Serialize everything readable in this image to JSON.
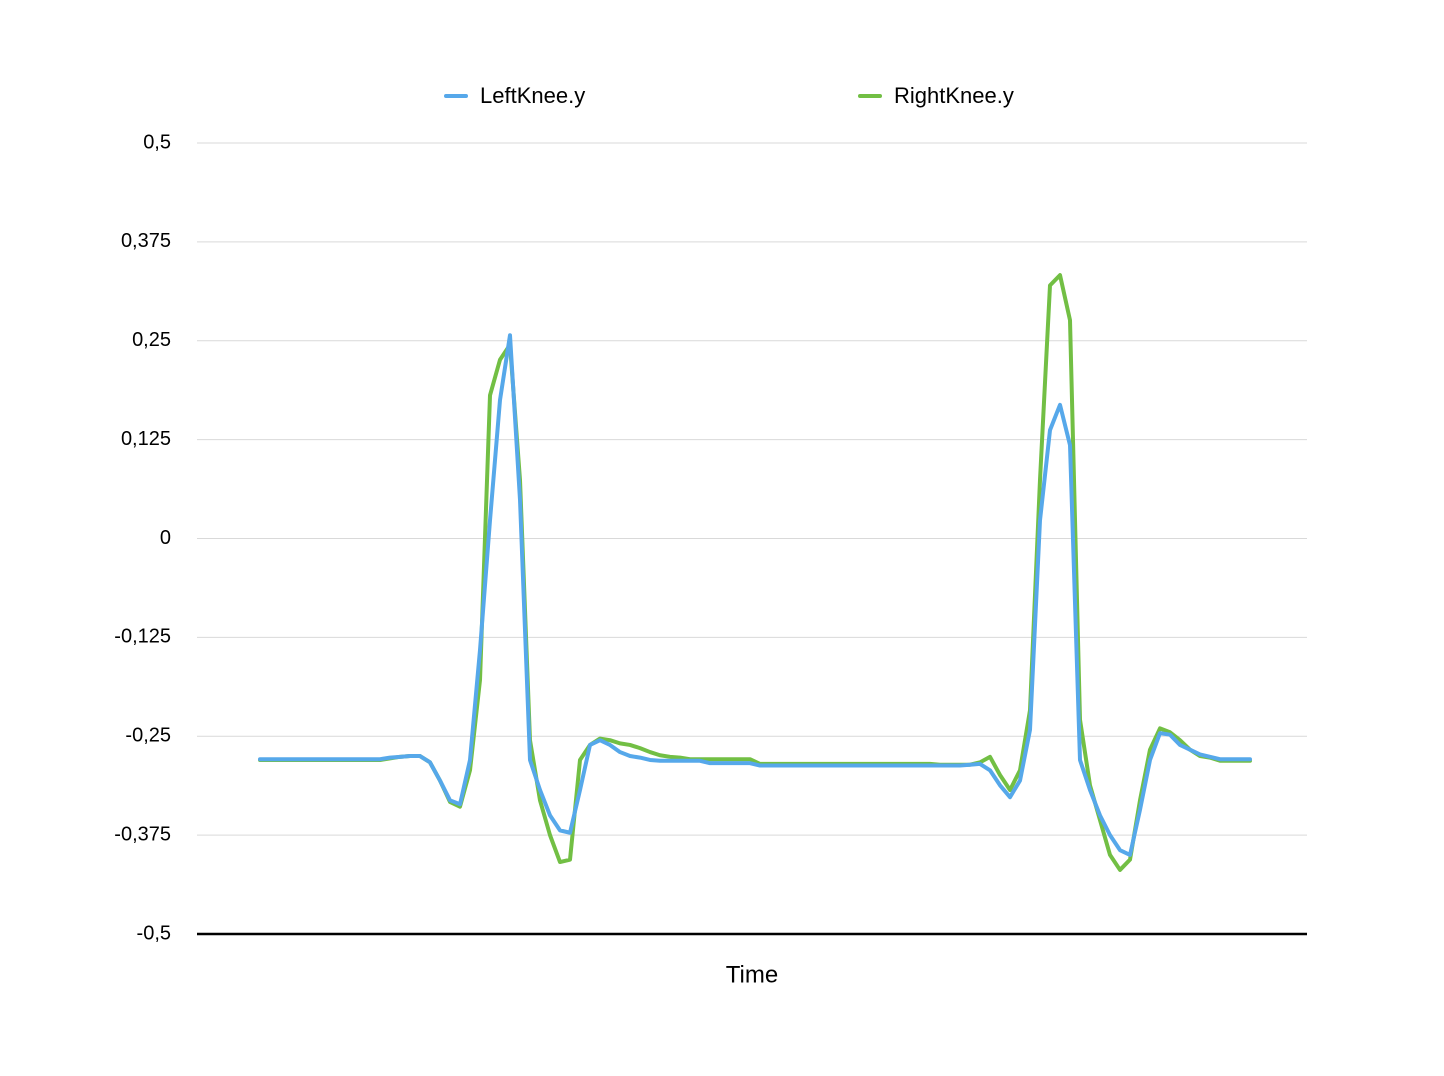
{
  "chart_data": {
    "type": "line",
    "x_label": "Time",
    "categories": [
      null,
      null,
      null,
      null,
      null,
      null,
      null,
      null,
      null,
      null,
      null,
      null,
      null,
      null,
      null,
      null,
      null,
      null,
      null,
      null,
      null,
      null,
      null,
      null,
      null,
      null,
      null,
      null,
      null,
      null,
      null,
      null,
      null,
      null,
      null,
      null,
      null,
      null,
      null,
      null,
      null,
      null,
      null,
      null,
      null,
      null,
      null,
      null,
      null,
      null,
      null,
      null,
      null,
      null,
      null,
      null,
      null,
      null,
      null,
      null,
      null,
      null,
      null,
      null,
      null,
      null,
      null,
      null,
      null,
      null,
      null,
      null,
      null,
      null,
      null,
      null,
      null,
      null,
      null,
      null,
      null,
      null,
      null,
      null,
      null,
      null,
      null,
      null,
      null,
      null,
      null,
      null,
      null,
      null,
      null,
      null,
      null,
      null,
      null,
      null
    ],
    "series": [
      {
        "name": "LeftKnee.y",
        "color": "#56a8ea",
        "values": [
          -0.279,
          -0.279,
          -0.279,
          -0.279,
          -0.279,
          -0.279,
          -0.279,
          -0.279,
          -0.279,
          -0.279,
          -0.279,
          -0.279,
          -0.279,
          -0.277,
          -0.276,
          -0.275,
          -0.275,
          -0.283,
          -0.306,
          -0.331,
          -0.336,
          -0.28,
          -0.141,
          0.023,
          0.175,
          0.257,
          0.049,
          -0.28,
          -0.318,
          -0.35,
          -0.369,
          -0.372,
          -0.318,
          -0.261,
          -0.255,
          -0.261,
          -0.27,
          -0.275,
          -0.277,
          -0.28,
          -0.281,
          -0.281,
          -0.281,
          -0.281,
          -0.281,
          -0.284,
          -0.284,
          -0.284,
          -0.284,
          -0.284,
          -0.287,
          -0.287,
          -0.287,
          -0.287,
          -0.287,
          -0.287,
          -0.287,
          -0.287,
          -0.287,
          -0.287,
          -0.287,
          -0.287,
          -0.287,
          -0.287,
          -0.287,
          -0.287,
          -0.287,
          -0.287,
          -0.287,
          -0.287,
          -0.287,
          -0.286,
          -0.285,
          -0.293,
          -0.312,
          -0.327,
          -0.306,
          -0.242,
          0.023,
          0.137,
          0.169,
          0.118,
          -0.28,
          -0.318,
          -0.35,
          -0.375,
          -0.394,
          -0.4,
          -0.343,
          -0.28,
          -0.246,
          -0.248,
          -0.261,
          -0.267,
          -0.273,
          -0.276,
          -0.279,
          -0.279,
          -0.279,
          -0.279
        ]
      },
      {
        "name": "RightKnee.y",
        "color": "#72bf44",
        "values": [
          -0.28,
          -0.28,
          -0.28,
          -0.28,
          -0.28,
          -0.28,
          -0.28,
          -0.28,
          -0.28,
          -0.28,
          -0.28,
          -0.28,
          -0.28,
          -0.278,
          -0.276,
          -0.275,
          -0.275,
          -0.283,
          -0.306,
          -0.333,
          -0.339,
          -0.293,
          -0.179,
          0.181,
          0.226,
          0.245,
          0.074,
          -0.255,
          -0.331,
          -0.375,
          -0.409,
          -0.406,
          -0.28,
          -0.261,
          -0.253,
          -0.255,
          -0.259,
          -0.261,
          -0.265,
          -0.27,
          -0.274,
          -0.276,
          -0.277,
          -0.279,
          -0.279,
          -0.279,
          -0.279,
          -0.279,
          -0.279,
          -0.279,
          -0.285,
          -0.285,
          -0.285,
          -0.285,
          -0.285,
          -0.285,
          -0.285,
          -0.285,
          -0.285,
          -0.285,
          -0.285,
          -0.285,
          -0.285,
          -0.285,
          -0.285,
          -0.285,
          -0.285,
          -0.285,
          -0.286,
          -0.286,
          -0.286,
          -0.286,
          -0.283,
          -0.276,
          -0.299,
          -0.318,
          -0.293,
          -0.217,
          0.074,
          0.32,
          0.333,
          0.276,
          -0.229,
          -0.312,
          -0.356,
          -0.4,
          -0.419,
          -0.406,
          -0.331,
          -0.267,
          -0.24,
          -0.245,
          -0.255,
          -0.267,
          -0.275,
          -0.277,
          -0.281,
          -0.281,
          -0.281,
          -0.281
        ]
      }
    ],
    "ylim": [
      -0.5,
      0.5
    ],
    "yticks": [
      {
        "value": -0.5,
        "label": "-0,5"
      },
      {
        "value": -0.375,
        "label": "-0,375"
      },
      {
        "value": -0.25,
        "label": "-0,25"
      },
      {
        "value": -0.125,
        "label": "-0,125"
      },
      0,
      {
        "value": 0.125,
        "label": "0,125"
      },
      {
        "value": 0.25,
        "label": "0,25"
      },
      {
        "value": 0.375,
        "label": "0,375"
      },
      {
        "value": 0.5,
        "label": "0,5"
      }
    ],
    "grid": true,
    "legend": "top"
  }
}
